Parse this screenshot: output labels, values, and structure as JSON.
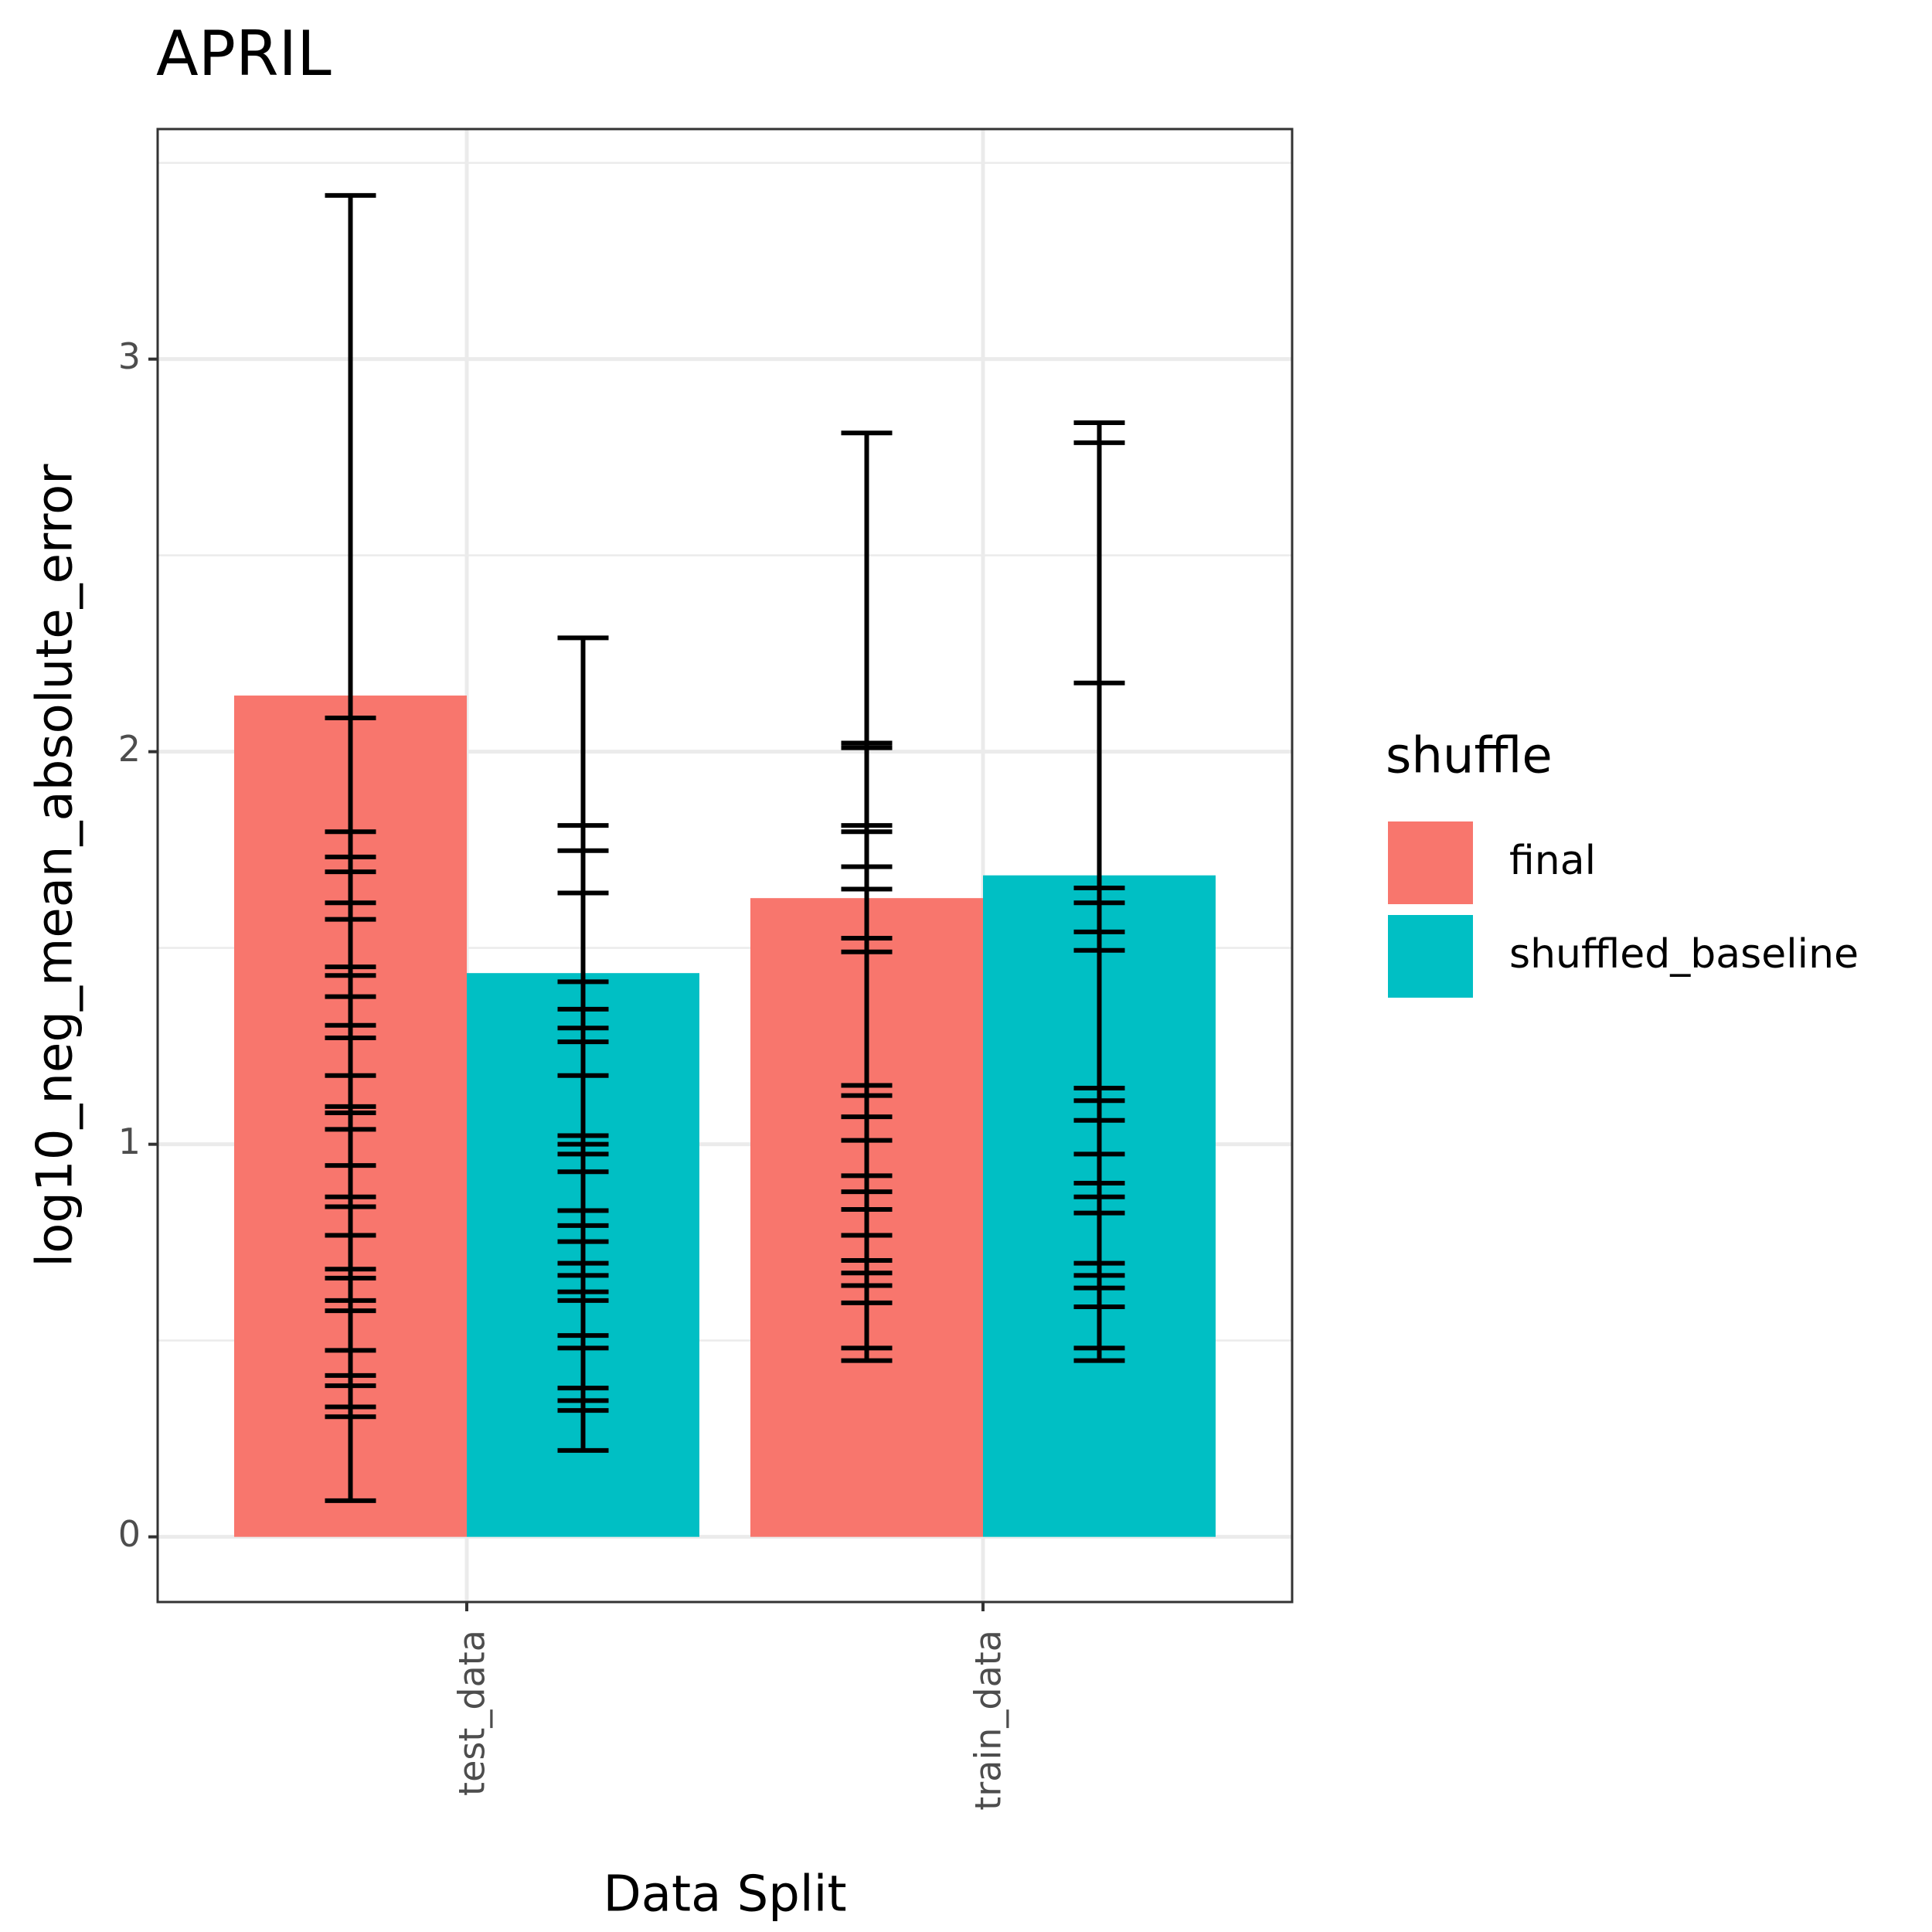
{
  "chart_data": {
    "type": "bar",
    "title": "APRIL",
    "x_label": "Data Split",
    "y_label": "log10_neg_mean_absolute_error",
    "categories": [
      "test_data",
      "train_data"
    ],
    "legend_title": "shuffle",
    "series": [
      {
        "name": "final",
        "color": "#f8766d",
        "values": [
          2.143,
          1.627
        ],
        "error_caps": [
          [
            3.417,
            2.086,
            1.796,
            1.732,
            1.694,
            1.615,
            1.573,
            1.452,
            1.43,
            1.376,
            1.303,
            1.271,
            1.175,
            1.096,
            1.08,
            1.038,
            0.946,
            0.866,
            0.841,
            0.768,
            0.682,
            0.659,
            0.602,
            0.576,
            0.475,
            0.411,
            0.385,
            0.331,
            0.306,
            0.092
          ],
          [
            2.812,
            2.022,
            2.01,
            1.812,
            1.796,
            1.707,
            1.65,
            1.525,
            1.49,
            1.15,
            1.124,
            1.07,
            1.01,
            0.92,
            0.879,
            0.834,
            0.768,
            0.704,
            0.672,
            0.64,
            0.596,
            0.481,
            0.449
          ]
        ]
      },
      {
        "name": "shuffled_baseline",
        "color": "#00bfc4",
        "values": [
          1.436,
          1.685
        ],
        "error_caps": [
          [
            2.29,
            1.812,
            1.748,
            1.64,
            1.414,
            1.344,
            1.296,
            1.261,
            1.175,
            1.022,
            1.0,
            0.975,
            0.93,
            0.831,
            0.793,
            0.752,
            0.697,
            0.666,
            0.624,
            0.602,
            0.513,
            0.481,
            0.379,
            0.347,
            0.322,
            0.22
          ],
          [
            2.838,
            2.787,
            2.175,
            1.653,
            1.615,
            1.541,
            1.494,
            1.143,
            1.111,
            1.061,
            0.975,
            0.901,
            0.866,
            0.825,
            0.697,
            0.666,
            0.634,
            0.586,
            0.481,
            0.449
          ]
        ]
      }
    ],
    "ylim": [
      -0.166,
      3.586
    ],
    "yticks": [
      0,
      1,
      2,
      3
    ],
    "minor_yticks": [
      0.5,
      1.5,
      2.5,
      3.5
    ],
    "grid": true
  }
}
